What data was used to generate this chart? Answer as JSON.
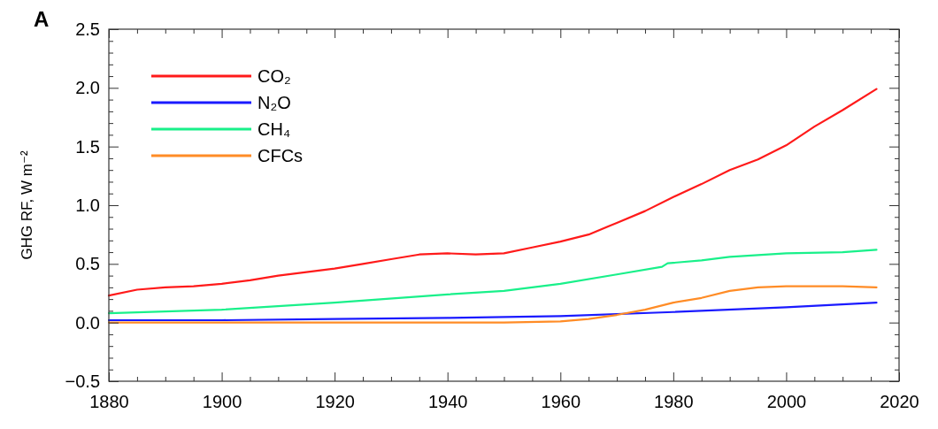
{
  "chart_data": {
    "type": "line",
    "title": "A",
    "ylabel": "GHG RF, W m⁻²",
    "xlim": [
      1880,
      2020
    ],
    "ylim": [
      -0.5,
      2.5
    ],
    "xticks": [
      1880,
      {
        "value": 1885,
        "label": null
      },
      {
        "value": 1890,
        "label": null
      },
      {
        "value": 1895,
        "label": null
      },
      1900,
      {
        "value": 1905,
        "label": null
      },
      {
        "value": 1910,
        "label": null
      },
      {
        "value": 1915,
        "label": null
      },
      1920,
      {
        "value": 1925,
        "label": null
      },
      {
        "value": 1930,
        "label": null
      },
      {
        "value": 1935,
        "label": null
      },
      1940,
      {
        "value": 1945,
        "label": null
      },
      {
        "value": 1950,
        "label": null
      },
      {
        "value": 1955,
        "label": null
      },
      1960,
      {
        "value": 1965,
        "label": null
      },
      {
        "value": 1970,
        "label": null
      },
      {
        "value": 1975,
        "label": null
      },
      1980,
      {
        "value": 1985,
        "label": null
      },
      {
        "value": 1990,
        "label": null
      },
      {
        "value": 1995,
        "label": null
      },
      2000,
      {
        "value": 2005,
        "label": null
      },
      {
        "value": 2010,
        "label": null
      },
      {
        "value": 2015,
        "label": null
      },
      2020
    ],
    "yticks": [
      {
        "value": -0.5,
        "label": "−0.5"
      },
      {
        "value": -0.4,
        "label": null
      },
      {
        "value": -0.3,
        "label": null
      },
      {
        "value": -0.2,
        "label": null
      },
      {
        "value": -0.1,
        "label": null
      },
      {
        "value": 0,
        "label": "0.0"
      },
      {
        "value": 0.1,
        "label": null
      },
      {
        "value": 0.2,
        "label": null
      },
      {
        "value": 0.3,
        "label": null
      },
      {
        "value": 0.4,
        "label": null
      },
      0.5,
      {
        "value": 0.6,
        "label": null
      },
      {
        "value": 0.7,
        "label": null
      },
      {
        "value": 0.8,
        "label": null
      },
      {
        "value": 0.9,
        "label": null
      },
      {
        "value": 1,
        "label": "1.0"
      },
      {
        "value": 1.1,
        "label": null
      },
      {
        "value": 1.2,
        "label": null
      },
      {
        "value": 1.3,
        "label": null
      },
      {
        "value": 1.4,
        "label": null
      },
      1.5,
      {
        "value": 1.6,
        "label": null
      },
      {
        "value": 1.7,
        "label": null
      },
      {
        "value": 1.8,
        "label": null
      },
      {
        "value": 1.9,
        "label": null
      },
      {
        "value": 2,
        "label": "2.0"
      },
      {
        "value": 2.1,
        "label": null
      },
      {
        "value": 2.2,
        "label": null
      },
      {
        "value": 2.3,
        "label": null
      },
      {
        "value": 2.4,
        "label": null
      },
      2.5
    ],
    "legend": "top left",
    "grid": false,
    "marker": "none",
    "line_style": "solid",
    "series": [
      {
        "name": "CO₂",
        "color": "#ff1a1a",
        "x": [
          1880,
          1885,
          1890,
          1895,
          1900,
          1905,
          1910,
          1915,
          1920,
          1925,
          1930,
          1935,
          1940,
          1945,
          1950,
          1955,
          1960,
          1965,
          1970,
          1975,
          1980,
          1985,
          1990,
          1995,
          2000,
          2005,
          2010,
          2016
        ],
        "values": [
          0.23,
          0.28,
          0.3,
          0.31,
          0.33,
          0.36,
          0.4,
          0.43,
          0.46,
          0.5,
          0.54,
          0.58,
          0.59,
          0.58,
          0.59,
          0.64,
          0.69,
          0.75,
          0.85,
          0.95,
          1.07,
          1.18,
          1.3,
          1.39,
          1.51,
          1.67,
          1.81,
          1.99
        ]
      },
      {
        "name": "N₂O",
        "color": "#1a1aff",
        "x": [
          1880,
          1900,
          1920,
          1940,
          1960,
          1980,
          2000,
          2016
        ],
        "values": [
          0.02,
          0.02,
          0.03,
          0.04,
          0.055,
          0.09,
          0.13,
          0.17
        ]
      },
      {
        "name": "CH₄",
        "color": "#19f08a",
        "x": [
          1880,
          1900,
          1920,
          1940,
          1950,
          1960,
          1970,
          1978,
          1979,
          1985,
          1990,
          2000,
          2010,
          2016
        ],
        "values": [
          0.08,
          0.11,
          0.17,
          0.24,
          0.27,
          0.33,
          0.41,
          0.475,
          0.505,
          0.53,
          0.56,
          0.59,
          0.6,
          0.62
        ]
      },
      {
        "name": "CFCs",
        "color": "#ff8c26",
        "x": [
          1880,
          1920,
          1950,
          1960,
          1965,
          1970,
          1975,
          1980,
          1985,
          1990,
          1995,
          2000,
          2010,
          2016
        ],
        "values": [
          0,
          0,
          0,
          0.01,
          0.03,
          0.065,
          0.11,
          0.17,
          0.21,
          0.27,
          0.3,
          0.31,
          0.31,
          0.3
        ]
      }
    ]
  }
}
